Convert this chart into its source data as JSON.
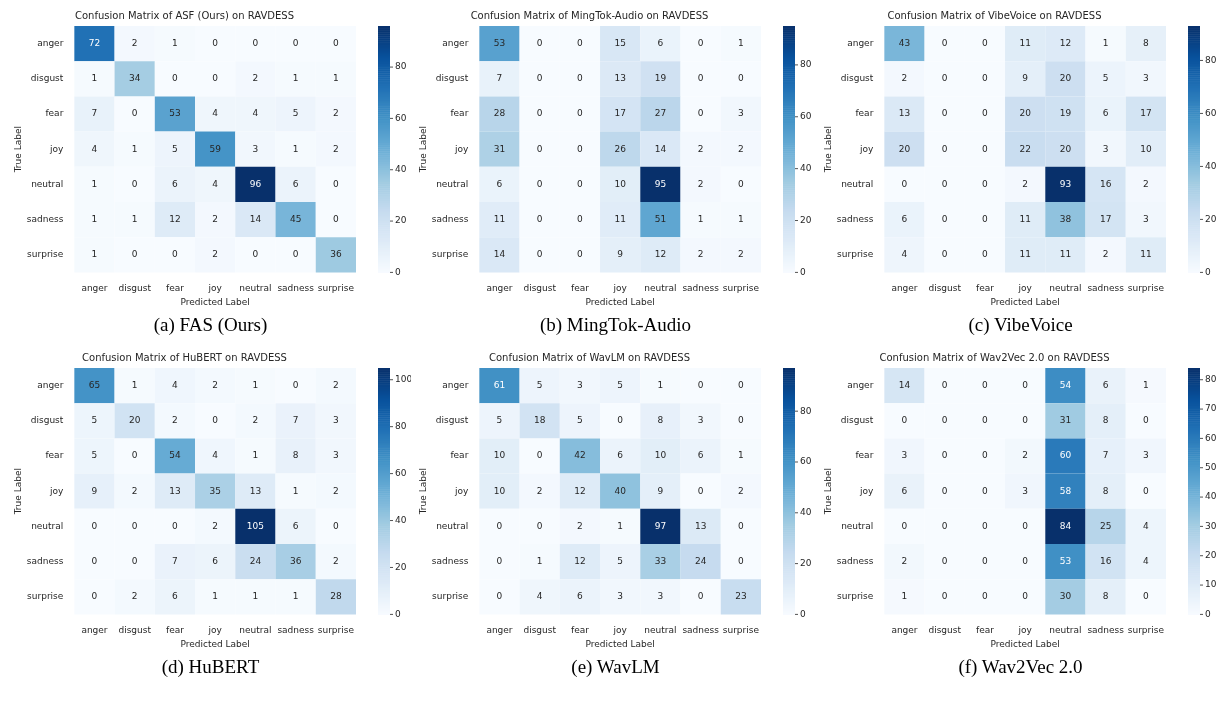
{
  "chart_data": [
    {
      "type": "heatmap",
      "title": "Confusion Matrix of ASF (Ours) on RAVDESS",
      "xlabel": "Predicted Label",
      "ylabel": "True Label",
      "categories": [
        "anger",
        "disgust",
        "fear",
        "joy",
        "neutral",
        "sadness",
        "surprise"
      ],
      "y_categories": [
        "anger",
        "disgust",
        "fear",
        "joy",
        "neutral",
        "sadness",
        "surprise"
      ],
      "cells": [
        [
          72,
          2,
          1,
          0,
          0,
          0,
          0
        ],
        [
          1,
          34,
          0,
          0,
          2,
          1,
          1
        ],
        [
          7,
          0,
          53,
          4,
          4,
          5,
          2
        ],
        [
          4,
          1,
          5,
          59,
          3,
          1,
          2
        ],
        [
          1,
          0,
          6,
          4,
          96,
          6,
          0
        ],
        [
          1,
          1,
          12,
          2,
          14,
          45,
          0
        ],
        [
          1,
          0,
          0,
          2,
          0,
          0,
          36
        ]
      ],
      "clim": [
        0,
        96
      ],
      "cticks": [
        0,
        20,
        40,
        60,
        80
      ],
      "data_labels": true,
      "annotations": [
        "(a) FAS (Ours)"
      ]
    },
    {
      "type": "heatmap",
      "title": "Confusion Matrix of MingTok-Audio on RAVDESS",
      "xlabel": "Predicted Label",
      "ylabel": "True Label",
      "categories": [
        "anger",
        "disgust",
        "fear",
        "joy",
        "neutral",
        "sadness",
        "surprise"
      ],
      "y_categories": [
        "anger",
        "disgust",
        "fear",
        "joy",
        "neutral",
        "sadness",
        "surprise"
      ],
      "cells": [
        [
          53,
          0,
          0,
          15,
          6,
          0,
          1
        ],
        [
          7,
          0,
          0,
          13,
          19,
          0,
          0
        ],
        [
          28,
          0,
          0,
          17,
          27,
          0,
          3
        ],
        [
          31,
          0,
          0,
          26,
          14,
          2,
          2
        ],
        [
          6,
          0,
          0,
          10,
          95,
          2,
          0
        ],
        [
          11,
          0,
          0,
          11,
          51,
          1,
          1
        ],
        [
          14,
          0,
          0,
          9,
          12,
          2,
          2
        ]
      ],
      "clim": [
        0,
        95
      ],
      "cticks": [
        0,
        20,
        40,
        60,
        80
      ],
      "data_labels": true,
      "annotations": [
        "(b) MingTok-Audio"
      ]
    },
    {
      "type": "heatmap",
      "title": "Confusion Matrix of VibeVoice on RAVDESS",
      "xlabel": "Predicted Label",
      "ylabel": "True Label",
      "categories": [
        "anger",
        "disgust",
        "fear",
        "joy",
        "neutral",
        "sadness",
        "surprise"
      ],
      "y_categories": [
        "anger",
        "disgust",
        "fear",
        "joy",
        "neutral",
        "sadness",
        "surprise"
      ],
      "cells": [
        [
          43,
          0,
          0,
          11,
          12,
          1,
          8
        ],
        [
          2,
          0,
          0,
          9,
          20,
          5,
          3
        ],
        [
          13,
          0,
          0,
          20,
          19,
          6,
          17
        ],
        [
          20,
          0,
          0,
          22,
          20,
          3,
          10
        ],
        [
          0,
          0,
          0,
          2,
          93,
          16,
          2
        ],
        [
          6,
          0,
          0,
          11,
          38,
          17,
          3
        ],
        [
          4,
          0,
          0,
          11,
          11,
          2,
          11
        ]
      ],
      "clim": [
        0,
        93
      ],
      "cticks": [
        0,
        20,
        40,
        60,
        80
      ],
      "data_labels": true,
      "annotations": [
        "(c) VibeVoice"
      ]
    },
    {
      "type": "heatmap",
      "title": "Confusion Matrix of HuBERT on RAVDESS",
      "xlabel": "Predicted Label",
      "ylabel": "True Label",
      "categories": [
        "anger",
        "disgust",
        "fear",
        "joy",
        "neutral",
        "sadness",
        "surprise"
      ],
      "y_categories": [
        "anger",
        "disgust",
        "fear",
        "joy",
        "neutral",
        "sadness",
        "surprise"
      ],
      "cells": [
        [
          65,
          1,
          4,
          2,
          1,
          0,
          2
        ],
        [
          5,
          20,
          2,
          0,
          2,
          7,
          3
        ],
        [
          5,
          0,
          54,
          4,
          1,
          8,
          3
        ],
        [
          9,
          2,
          13,
          35,
          13,
          1,
          2
        ],
        [
          0,
          0,
          0,
          2,
          105,
          6,
          0
        ],
        [
          0,
          0,
          7,
          6,
          24,
          36,
          2
        ],
        [
          0,
          2,
          6,
          1,
          1,
          1,
          28
        ]
      ],
      "clim": [
        0,
        105
      ],
      "cticks": [
        0,
        20,
        40,
        60,
        80,
        100
      ],
      "data_labels": true,
      "annotations": [
        "(d) HuBERT"
      ]
    },
    {
      "type": "heatmap",
      "title": "Confusion Matrix of WavLM on RAVDESS",
      "xlabel": "Predicted Label",
      "ylabel": "True Label",
      "categories": [
        "anger",
        "disgust",
        "fear",
        "joy",
        "neutral",
        "sadness",
        "surprise"
      ],
      "y_categories": [
        "anger",
        "disgust",
        "fear",
        "joy",
        "neutral",
        "sadness",
        "surprise"
      ],
      "cells": [
        [
          61,
          5,
          3,
          5,
          1,
          0,
          0
        ],
        [
          5,
          18,
          5,
          0,
          8,
          3,
          0
        ],
        [
          10,
          0,
          42,
          6,
          10,
          6,
          1
        ],
        [
          10,
          2,
          12,
          40,
          9,
          0,
          2
        ],
        [
          0,
          0,
          2,
          1,
          97,
          13,
          0
        ],
        [
          0,
          1,
          12,
          5,
          33,
          24,
          0
        ],
        [
          0,
          4,
          6,
          3,
          3,
          0,
          23
        ]
      ],
      "clim": [
        0,
        97
      ],
      "cticks": [
        0,
        20,
        40,
        60,
        80
      ],
      "data_labels": true,
      "annotations": [
        "(e) WavLM"
      ]
    },
    {
      "type": "heatmap",
      "title": "Confusion Matrix of Wav2Vec 2.0 on RAVDESS",
      "xlabel": "Predicted Label",
      "ylabel": "True Label",
      "categories": [
        "anger",
        "disgust",
        "fear",
        "joy",
        "neutral",
        "sadness",
        "surprise"
      ],
      "y_categories": [
        "anger",
        "disgust",
        "fear",
        "joy",
        "neutral",
        "sadness",
        "surprise"
      ],
      "cells": [
        [
          14,
          0,
          0,
          0,
          54,
          6,
          1
        ],
        [
          0,
          0,
          0,
          0,
          31,
          8,
          0
        ],
        [
          3,
          0,
          0,
          2,
          60,
          7,
          3
        ],
        [
          6,
          0,
          0,
          3,
          58,
          8,
          0
        ],
        [
          0,
          0,
          0,
          0,
          84,
          25,
          4
        ],
        [
          2,
          0,
          0,
          0,
          53,
          16,
          4
        ],
        [
          1,
          0,
          0,
          0,
          30,
          8,
          0
        ]
      ],
      "clim": [
        0,
        84
      ],
      "cticks": [
        0,
        10,
        20,
        30,
        40,
        50,
        60,
        70,
        80
      ],
      "data_labels": true,
      "annotations": [
        "(f) Wav2Vec 2.0"
      ]
    }
  ]
}
